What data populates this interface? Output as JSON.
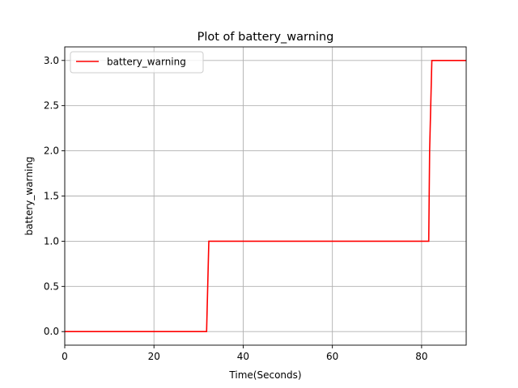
{
  "chart_data": {
    "type": "line",
    "title": "Plot of battery_warning",
    "xlabel": "Time(Seconds)",
    "ylabel": "battery_warning",
    "xlim": [
      0,
      90
    ],
    "ylim": [
      -0.15,
      3.15
    ],
    "xticks": [
      0,
      20,
      40,
      60,
      80
    ],
    "xtick_labels": [
      "0",
      "20",
      "40",
      "60",
      "80"
    ],
    "yticks": [
      0,
      0.5,
      1,
      1.5,
      2,
      2.5,
      3
    ],
    "ytick_labels": [
      "0.0",
      "0.5",
      "1.0",
      "1.5",
      "2.0",
      "2.5",
      "3.0"
    ],
    "grid": true,
    "legend_position": "top-left",
    "series": [
      {
        "name": "battery_warning",
        "color": "#ff0000",
        "x": [
          0,
          31.8,
          32.3,
          81.6,
          81.8,
          82.3,
          90
        ],
        "y": [
          0,
          0,
          1,
          1,
          2,
          3,
          3
        ]
      }
    ]
  }
}
